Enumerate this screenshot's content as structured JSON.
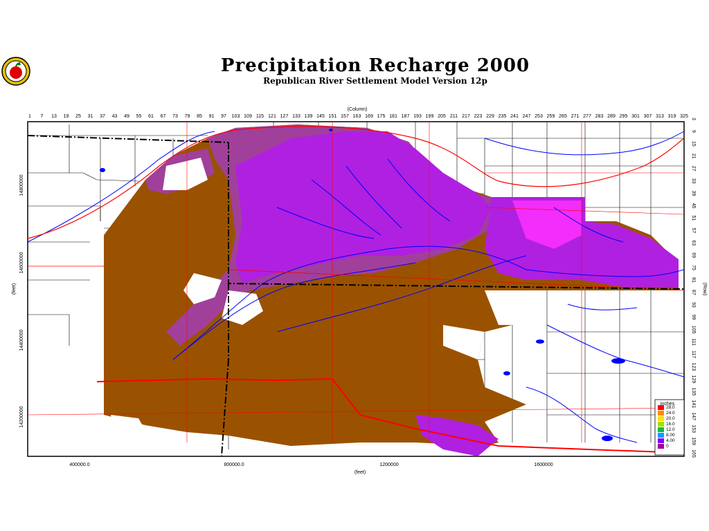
{
  "title": "Precipitation Recharge 2000",
  "subtitle": "Republican River Settlement Model Version 12p",
  "logo_icon": "apple-seal-icon",
  "axes": {
    "top_label": "(Column)",
    "top_ticks": [
      "1",
      "7",
      "13",
      "19",
      "25",
      "31",
      "37",
      "43",
      "49",
      "55",
      "61",
      "67",
      "73",
      "79",
      "85",
      "91",
      "97",
      "103",
      "109",
      "115",
      "121",
      "127",
      "133",
      "139",
      "145",
      "151",
      "157",
      "163",
      "169",
      "175",
      "181",
      "187",
      "193",
      "199",
      "205",
      "211",
      "217",
      "223",
      "229",
      "235",
      "241",
      "247",
      "253",
      "259",
      "265",
      "271",
      "277",
      "283",
      "289",
      "295",
      "301",
      "307",
      "313",
      "319",
      "325"
    ],
    "right_label": "(Row)",
    "right_ticks": [
      "3",
      "9",
      "15",
      "21",
      "27",
      "33",
      "39",
      "45",
      "51",
      "57",
      "63",
      "69",
      "75",
      "81",
      "87",
      "93",
      "99",
      "105",
      "111",
      "117",
      "123",
      "129",
      "135",
      "141",
      "147",
      "153",
      "159",
      "165"
    ],
    "bottom_label": "(feet)",
    "bottom_ticks": [
      "400000.0",
      "800000.0",
      "1200000",
      "1600000"
    ],
    "left_label": "(feet)",
    "left_ticks": [
      "14800000",
      "14600000",
      "14400000",
      "14200000"
    ]
  },
  "legend": {
    "title": "inches",
    "entries": [
      {
        "label": "28.0",
        "color": "#ff0000"
      },
      {
        "label": "24.0",
        "color": "#ff8c00"
      },
      {
        "label": "20.0",
        "color": "#ffe000"
      },
      {
        "label": "16.0",
        "color": "#a0e000"
      },
      {
        "label": "12.0",
        "color": "#00c040"
      },
      {
        "label": "8.00",
        "color": "#00a0ff"
      },
      {
        "label": "4.00",
        "color": "#8000ff"
      },
      {
        "label": "0",
        "color": "#a000a0"
      }
    ]
  },
  "colors": {
    "recharge_low": "#9a5200",
    "recharge_mid": "#a0409a",
    "recharge_high": "#b020e0",
    "recharge_peak": "#ff30ff",
    "river": "#0000ff",
    "road": "#ff0000",
    "boundary": "#000000"
  }
}
